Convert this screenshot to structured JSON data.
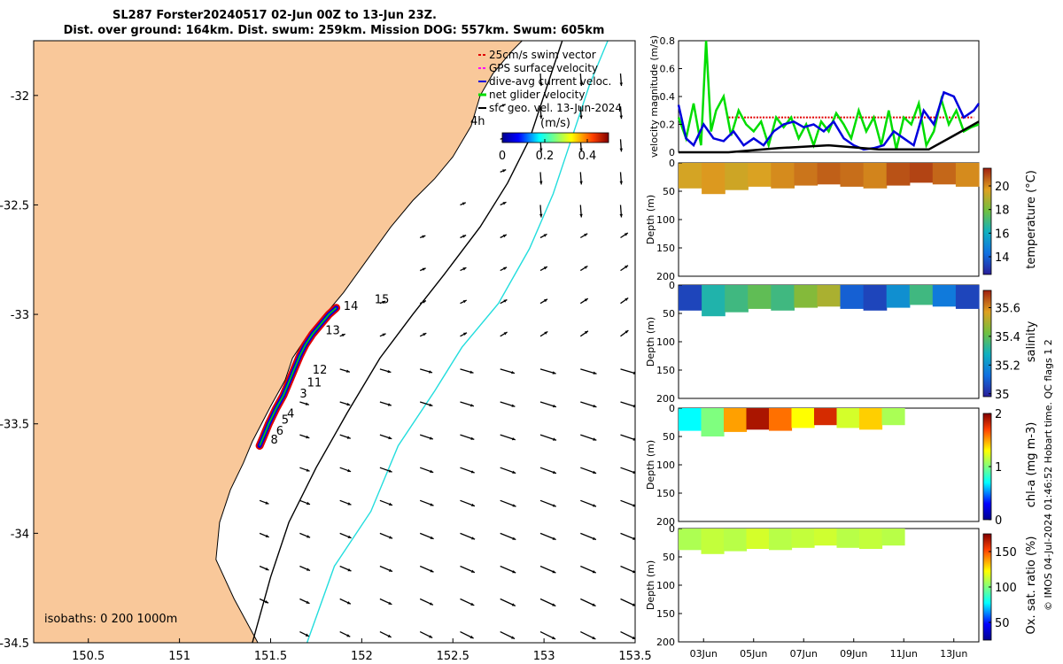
{
  "header": {
    "line1": "SL287 Forster20240517 02-Jun 00Z to 13-Jun 23Z.",
    "line2": "Dist. over ground: 164km. Dist. swum: 259km. Mission DOG: 557km. Swum: 605km"
  },
  "side_note": "© IMOS 04-Jul-2024 01:46:52 Hobart time. QC flags 1 2",
  "colors": {
    "land": "#F9C89A",
    "swim_vector": "#e00000",
    "gps_velocity": "#ff00ff",
    "dive_avg_current": "#0000dd",
    "net_glider": "#00dd00",
    "geo_velocity": "#000000",
    "isobath_200": "#000000",
    "isobath_1000": "#22dddd"
  },
  "chart_data": [
    {
      "type": "map",
      "name": "glider-track-map",
      "xlim": [
        150.2,
        153.5
      ],
      "ylim": [
        -34.5,
        -31.75
      ],
      "xticks": [
        150.5,
        151,
        151.5,
        152,
        152.5,
        153,
        153.5
      ],
      "xtick_labels": [
        "150.5",
        "151",
        "151.5",
        "152",
        "152.5",
        "153",
        "153.5"
      ],
      "yticks": [
        -32,
        -32.5,
        -33,
        -33.5,
        -34,
        -34.5
      ],
      "ytick_labels": [
        "-32",
        "-32.5",
        "-33",
        "-33.5",
        "-34",
        "-34.5"
      ],
      "legend": [
        "25cm/s swim vector",
        "GPS surface velocity",
        "dive-avg current veloc.",
        "net glider velocity",
        "sfc geo. vel. 13-Jun-2024"
      ],
      "legend_position": "top-right",
      "colorbar": {
        "label": "(m/s)",
        "tick_labels": [
          "0",
          "0.2",
          "0.4"
        ],
        "range": [
          0,
          0.5
        ]
      },
      "scale_label": "4h",
      "isobath_label": "isobaths: 0   200  1000m",
      "coastline": [
        [
          151.43,
          -34.5
        ],
        [
          151.3,
          -34.3
        ],
        [
          151.2,
          -34.12
        ],
        [
          151.22,
          -33.95
        ],
        [
          151.28,
          -33.8
        ],
        [
          151.35,
          -33.68
        ],
        [
          151.4,
          -33.58
        ],
        [
          151.5,
          -33.42
        ],
        [
          151.58,
          -33.3
        ],
        [
          151.62,
          -33.2
        ],
        [
          151.7,
          -33.1
        ],
        [
          151.8,
          -33.0
        ],
        [
          151.9,
          -32.9
        ],
        [
          152.03,
          -32.75
        ],
        [
          152.16,
          -32.6
        ],
        [
          152.28,
          -32.48
        ],
        [
          152.4,
          -32.38
        ],
        [
          152.5,
          -32.28
        ],
        [
          152.6,
          -32.14
        ],
        [
          152.65,
          -32.0
        ],
        [
          152.72,
          -31.9
        ],
        [
          152.82,
          -31.8
        ],
        [
          152.88,
          -31.75
        ]
      ],
      "isobath_200": [
        [
          151.4,
          -34.5
        ],
        [
          151.5,
          -34.2
        ],
        [
          151.6,
          -33.95
        ],
        [
          151.75,
          -33.7
        ],
        [
          151.92,
          -33.45
        ],
        [
          152.1,
          -33.2
        ],
        [
          152.28,
          -33.0
        ],
        [
          152.45,
          -32.82
        ],
        [
          152.65,
          -32.6
        ],
        [
          152.8,
          -32.4
        ],
        [
          152.92,
          -32.2
        ],
        [
          153.02,
          -31.95
        ],
        [
          153.1,
          -31.75
        ]
      ],
      "isobath_1000": [
        [
          151.7,
          -34.5
        ],
        [
          151.85,
          -34.15
        ],
        [
          152.05,
          -33.9
        ],
        [
          152.2,
          -33.6
        ],
        [
          152.4,
          -33.35
        ],
        [
          152.55,
          -33.15
        ],
        [
          152.75,
          -32.95
        ],
        [
          152.92,
          -32.7
        ],
        [
          153.05,
          -32.45
        ],
        [
          153.15,
          -32.2
        ],
        [
          153.25,
          -31.95
        ],
        [
          153.35,
          -31.75
        ]
      ],
      "track": [
        [
          151.44,
          -33.6
        ],
        [
          151.46,
          -33.56
        ],
        [
          151.49,
          -33.5
        ],
        [
          151.53,
          -33.43
        ],
        [
          151.57,
          -33.37
        ],
        [
          151.6,
          -33.31
        ],
        [
          151.63,
          -33.25
        ],
        [
          151.66,
          -33.19
        ],
        [
          151.69,
          -33.14
        ],
        [
          151.73,
          -33.09
        ],
        [
          151.77,
          -33.05
        ],
        [
          151.82,
          -33.0
        ],
        [
          151.86,
          -32.97
        ]
      ],
      "day_labels": [
        {
          "text": "3",
          "lon": 151.66,
          "lat": -33.38
        },
        {
          "text": "4",
          "lon": 151.59,
          "lat": -33.47
        },
        {
          "text": "5",
          "lon": 151.56,
          "lat": -33.5
        },
        {
          "text": "6",
          "lon": 151.53,
          "lat": -33.55
        },
        {
          "text": "8",
          "lon": 151.5,
          "lat": -33.59
        },
        {
          "text": "11",
          "lon": 151.7,
          "lat": -33.33
        },
        {
          "text": "12",
          "lon": 151.73,
          "lat": -33.27
        },
        {
          "text": "13",
          "lon": 151.8,
          "lat": -33.09
        },
        {
          "text": "14",
          "lon": 151.9,
          "lat": -32.98
        },
        {
          "text": "15",
          "lon": 152.07,
          "lat": -32.95
        }
      ]
    },
    {
      "type": "line",
      "name": "velocity-magnitude",
      "ylabel": "velocity magnitude (m/s)",
      "ylim": [
        0,
        0.8
      ],
      "yticks": [
        0,
        0.2,
        0.4,
        0.6,
        0.8
      ],
      "ytick_labels": [
        "0",
        "0.2",
        "0.4",
        "0.6",
        "0.8"
      ],
      "xlim": [
        0,
        12
      ],
      "series": [
        {
          "name": "swim vector",
          "color": "#e00000",
          "x": [
            2,
            11.8
          ],
          "y": [
            0.25,
            0.25
          ]
        },
        {
          "name": "net glider velocity",
          "color": "#00dd00",
          "x": [
            0,
            0.3,
            0.6,
            0.9,
            1.1,
            1.3,
            1.5,
            1.8,
            2.1,
            2.4,
            2.7,
            3,
            3.3,
            3.6,
            3.9,
            4.2,
            4.5,
            4.8,
            5.1,
            5.4,
            5.7,
            6,
            6.3,
            6.6,
            6.9,
            7.2,
            7.5,
            7.8,
            8.1,
            8.4,
            8.7,
            9,
            9.3,
            9.6,
            9.9,
            10.2,
            10.5,
            10.8,
            11.1,
            11.4,
            11.7,
            12
          ],
          "y": [
            0.25,
            0.1,
            0.35,
            0.05,
            0.8,
            0.15,
            0.3,
            0.4,
            0.12,
            0.3,
            0.2,
            0.15,
            0.22,
            0.05,
            0.25,
            0.18,
            0.25,
            0.1,
            0.2,
            0.05,
            0.22,
            0.15,
            0.28,
            0.2,
            0.1,
            0.3,
            0.15,
            0.25,
            0.05,
            0.3,
            0.02,
            0.25,
            0.2,
            0.35,
            0.05,
            0.15,
            0.38,
            0.2,
            0.3,
            0.15,
            0.18,
            0.2
          ]
        },
        {
          "name": "dive-avg current veloc.",
          "color": "#0000dd",
          "x": [
            0,
            0.3,
            0.6,
            1,
            1.4,
            1.8,
            2.2,
            2.6,
            3,
            3.4,
            3.8,
            4.2,
            4.6,
            5,
            5.4,
            5.8,
            6.2,
            6.6,
            7,
            7.4,
            7.8,
            8.2,
            8.6,
            9,
            9.4,
            9.8,
            10.2,
            10.6,
            11,
            11.4,
            11.8,
            12
          ],
          "y": [
            0.34,
            0.1,
            0.05,
            0.2,
            0.1,
            0.08,
            0.15,
            0.05,
            0.1,
            0.05,
            0.15,
            0.2,
            0.22,
            0.18,
            0.2,
            0.15,
            0.22,
            0.1,
            0.05,
            0.02,
            0.03,
            0.05,
            0.15,
            0.1,
            0.05,
            0.3,
            0.2,
            0.43,
            0.4,
            0.25,
            0.3,
            0.35
          ]
        },
        {
          "name": "sfc geo. vel.",
          "color": "#000000",
          "x": [
            0,
            2,
            4,
            6,
            8,
            10,
            11,
            12
          ],
          "y": [
            0.0,
            0.0,
            0.03,
            0.05,
            0.02,
            0.02,
            0.12,
            0.22
          ]
        }
      ]
    },
    {
      "type": "heatmap",
      "name": "temperature-section",
      "ylabel": "Depth (m)",
      "colorbar_label": "temperature (°C)",
      "ylim": [
        0,
        200
      ],
      "yticks": [
        0,
        50,
        100,
        150,
        200
      ],
      "ytick_labels": [
        "0",
        "50",
        "100",
        "150",
        "200"
      ],
      "colorbar_ticks": [
        14,
        16,
        18,
        20
      ],
      "colorbar_range": [
        12.5,
        21.5
      ],
      "days": [
        0,
        1,
        2,
        3,
        4,
        5,
        6,
        7,
        8,
        9,
        10,
        11,
        12
      ],
      "bottom_depth": [
        45,
        55,
        48,
        42,
        45,
        40,
        38,
        42,
        45,
        40,
        35,
        38,
        42
      ],
      "values": [
        19.5,
        19.8,
        19.4,
        19.6,
        20.0,
        20.3,
        20.6,
        20.4,
        20.1,
        20.8,
        21.0,
        20.5,
        20.0
      ]
    },
    {
      "type": "heatmap",
      "name": "salinity-section",
      "ylabel": "Depth (m)",
      "colorbar_label": "salinity",
      "ylim": [
        0,
        200
      ],
      "yticks": [
        0,
        50,
        100,
        150,
        200
      ],
      "ytick_labels": [
        "0",
        "50",
        "100",
        "150",
        "200"
      ],
      "colorbar_ticks": [
        35,
        35.2,
        35.4,
        35.6
      ],
      "colorbar_tick_labels": [
        "35",
        "35.2",
        "35.4",
        "35.6"
      ],
      "colorbar_range": [
        34.98,
        35.72
      ],
      "days": [
        0,
        1,
        2,
        3,
        4,
        5,
        6,
        7,
        8,
        9,
        10,
        11,
        12
      ],
      "bottom_depth": [
        45,
        55,
        48,
        42,
        45,
        40,
        38,
        42,
        45,
        40,
        35,
        38,
        42
      ],
      "values": [
        35.05,
        35.3,
        35.35,
        35.4,
        35.35,
        35.45,
        35.5,
        35.1,
        35.05,
        35.2,
        35.35,
        35.15,
        35.05
      ]
    },
    {
      "type": "heatmap",
      "name": "chlorophyll-section",
      "ylabel": "Depth (m)",
      "colorbar_label": "chl-a (mg m-3)",
      "ylim": [
        0,
        200
      ],
      "yticks": [
        0,
        50,
        100,
        150,
        200
      ],
      "ytick_labels": [
        "0",
        "50",
        "100",
        "150",
        "200"
      ],
      "colorbar_ticks": [
        0,
        1,
        2
      ],
      "colorbar_range": [
        0,
        2
      ],
      "days": [
        0,
        1,
        2,
        3,
        4,
        5,
        6,
        7,
        8,
        9
      ],
      "bottom_depth": [
        40,
        50,
        42,
        38,
        40,
        35,
        30,
        35,
        38,
        30
      ],
      "values": [
        0.7,
        1.0,
        1.5,
        1.9,
        1.6,
        1.3,
        1.8,
        1.2,
        1.4,
        1.1
      ]
    },
    {
      "type": "heatmap",
      "name": "oxygen-section",
      "ylabel": "Depth (m)",
      "colorbar_label": "Ox. sat. ratio (%)",
      "ylim": [
        0,
        200
      ],
      "yticks": [
        0,
        50,
        100,
        150,
        200
      ],
      "ytick_labels": [
        "0",
        "50",
        "100",
        "150",
        "200"
      ],
      "colorbar_ticks": [
        50,
        100,
        150
      ],
      "colorbar_range": [
        25,
        175
      ],
      "days": [
        0,
        1,
        2,
        3,
        4,
        5,
        6,
        7,
        8,
        9
      ],
      "bottom_depth": [
        38,
        45,
        40,
        36,
        38,
        34,
        30,
        34,
        36,
        30
      ],
      "values": [
        108,
        112,
        110,
        115,
        110,
        112,
        114,
        110,
        112,
        110
      ],
      "xtick_labels": [
        "03Jun",
        "05Jun",
        "07Jun",
        "09Jun",
        "11Jun",
        "13Jun"
      ],
      "xticks": [
        1,
        3,
        5,
        7,
        9,
        11
      ]
    }
  ]
}
